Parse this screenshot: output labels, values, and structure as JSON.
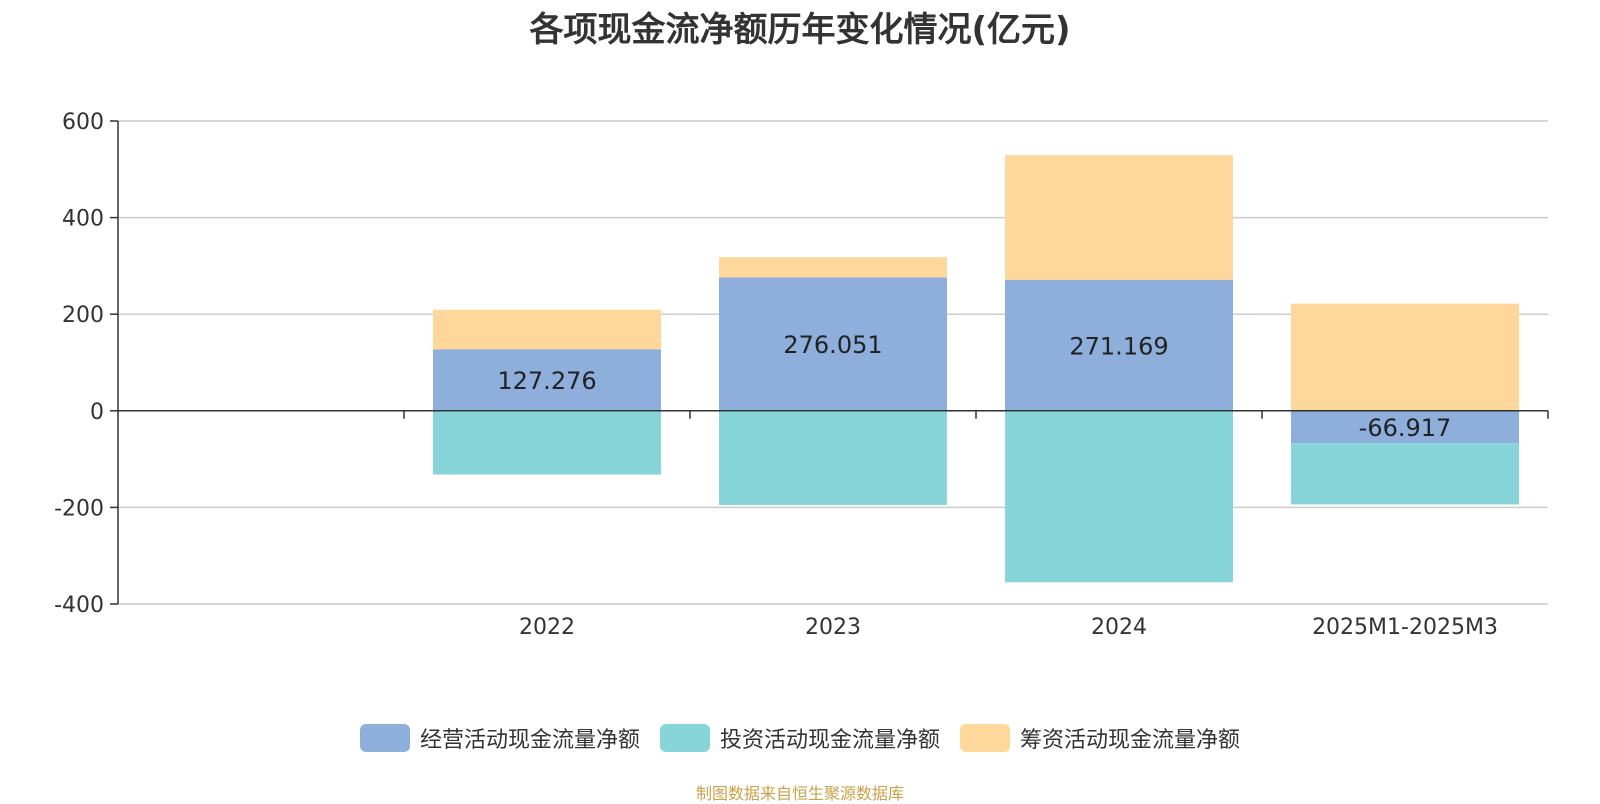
{
  "title": "各项现金流净额历年变化情况(亿元)",
  "source_note": "制图数据来自恒生聚源数据库",
  "colors": {
    "operating": "#8eaedc",
    "investing": "#87d5d9",
    "financing": "#fdd89a",
    "axis": "#333333",
    "grid": "#cccccc"
  },
  "legend": [
    {
      "label": "经营活动现金流量净额",
      "color": "#8eaedc"
    },
    {
      "label": "投资活动现金流量净额",
      "color": "#87d5d9"
    },
    {
      "label": "筹资活动现金流量净额",
      "color": "#fdd89a"
    }
  ],
  "chart_data": {
    "type": "bar",
    "stacked": true,
    "title": "各项现金流净额历年变化情况(亿元)",
    "categories": [
      "2022",
      "2023",
      "2024",
      "2025M1-2025M3"
    ],
    "series": [
      {
        "name": "经营活动现金流量净额",
        "values": [
          127.276,
          276.051,
          271.169,
          -66.917
        ],
        "show_labels": true
      },
      {
        "name": "投资活动现金流量净额",
        "values": [
          -132,
          -195,
          -355,
          -127
        ],
        "show_labels": false
      },
      {
        "name": "筹资活动现金流量净额",
        "values": [
          82,
          42,
          258,
          222
        ],
        "show_labels": false
      }
    ],
    "ylim": [
      -400,
      600
    ],
    "yticks": [
      -400,
      -200,
      0,
      200,
      400,
      600
    ],
    "grid": true,
    "legend_position": "bottom"
  }
}
